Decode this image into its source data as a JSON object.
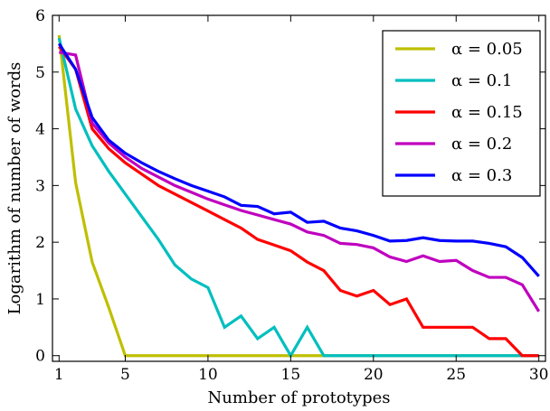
{
  "chart_data": {
    "type": "line",
    "xlabel": "Number of prototypes",
    "ylabel": "Logarithm of number of words",
    "xlim": [
      0.6,
      30.4
    ],
    "ylim": [
      -0.1,
      6
    ],
    "xticks": [
      1,
      5,
      10,
      15,
      20,
      25,
      30
    ],
    "yticks": [
      0,
      1,
      2,
      3,
      4,
      5,
      6
    ],
    "grid": false,
    "legend": "top-right",
    "series": [
      {
        "name": "α = 0.05",
        "color": "#bfbf00",
        "x": [
          1,
          2,
          3,
          4,
          5,
          6,
          7,
          8,
          9,
          10,
          11,
          12,
          13,
          14,
          15,
          16,
          17,
          18,
          19,
          20,
          21,
          22,
          23,
          24,
          25,
          26,
          27,
          28,
          29,
          30
        ],
        "y": [
          5.65,
          3.05,
          1.65,
          0.85,
          0,
          0,
          0,
          0,
          0,
          0,
          0,
          0,
          0,
          0,
          0,
          0,
          0,
          0,
          0,
          0,
          0,
          0,
          0,
          0,
          0,
          0,
          0,
          0,
          0,
          0
        ]
      },
      {
        "name": "α = 0.1",
        "color": "#00bfbf",
        "x": [
          1,
          2,
          3,
          4,
          5,
          6,
          7,
          8,
          9,
          10,
          11,
          12,
          13,
          14,
          15,
          16,
          17,
          18,
          19,
          20,
          21,
          22,
          23,
          24,
          25,
          26,
          27,
          28,
          29,
          30
        ],
        "y": [
          5.6,
          4.35,
          3.7,
          3.25,
          2.85,
          2.45,
          2.05,
          1.6,
          1.35,
          1.2,
          0.5,
          0.7,
          0.3,
          0.5,
          0,
          0.5,
          0,
          0,
          0,
          0,
          0,
          0,
          0,
          0,
          0,
          0,
          0,
          0,
          0,
          0
        ]
      },
      {
        "name": "α = 0.15",
        "color": "#ff0000",
        "x": [
          1,
          2,
          3,
          4,
          5,
          6,
          7,
          8,
          9,
          10,
          11,
          12,
          13,
          14,
          15,
          16,
          17,
          18,
          19,
          20,
          21,
          22,
          23,
          24,
          25,
          26,
          27,
          28,
          29,
          30
        ],
        "y": [
          5.45,
          5.05,
          4.0,
          3.65,
          3.4,
          3.2,
          3.0,
          2.85,
          2.7,
          2.55,
          2.4,
          2.25,
          2.05,
          1.95,
          1.85,
          1.65,
          1.5,
          1.15,
          1.05,
          1.15,
          0.9,
          1.0,
          0.5,
          0.5,
          0.5,
          0.5,
          0.3,
          0.3,
          0,
          0
        ]
      },
      {
        "name": "α = 0.2",
        "color": "#bf00bf",
        "x": [
          1,
          2,
          3,
          4,
          5,
          6,
          7,
          8,
          9,
          10,
          11,
          12,
          13,
          14,
          15,
          16,
          17,
          18,
          19,
          20,
          21,
          22,
          23,
          24,
          25,
          26,
          27,
          28,
          29,
          30
        ],
        "y": [
          5.35,
          5.3,
          4.1,
          3.75,
          3.5,
          3.3,
          3.15,
          3.0,
          2.88,
          2.76,
          2.66,
          2.56,
          2.48,
          2.4,
          2.32,
          2.18,
          2.12,
          1.98,
          1.96,
          1.9,
          1.74,
          1.66,
          1.76,
          1.66,
          1.68,
          1.5,
          1.38,
          1.38,
          1.25,
          0.78
        ]
      },
      {
        "name": "α = 0.3",
        "color": "#0000ff",
        "x": [
          1,
          2,
          3,
          4,
          5,
          6,
          7,
          8,
          9,
          10,
          11,
          12,
          13,
          14,
          15,
          16,
          17,
          18,
          19,
          20,
          21,
          22,
          23,
          24,
          25,
          26,
          27,
          28,
          29,
          30
        ],
        "y": [
          5.5,
          5.05,
          4.2,
          3.8,
          3.57,
          3.4,
          3.25,
          3.12,
          3.0,
          2.9,
          2.8,
          2.65,
          2.63,
          2.5,
          2.53,
          2.35,
          2.37,
          2.25,
          2.2,
          2.12,
          2.02,
          2.03,
          2.08,
          2.03,
          2.02,
          2.02,
          1.98,
          1.92,
          1.73,
          1.4
        ]
      }
    ]
  }
}
